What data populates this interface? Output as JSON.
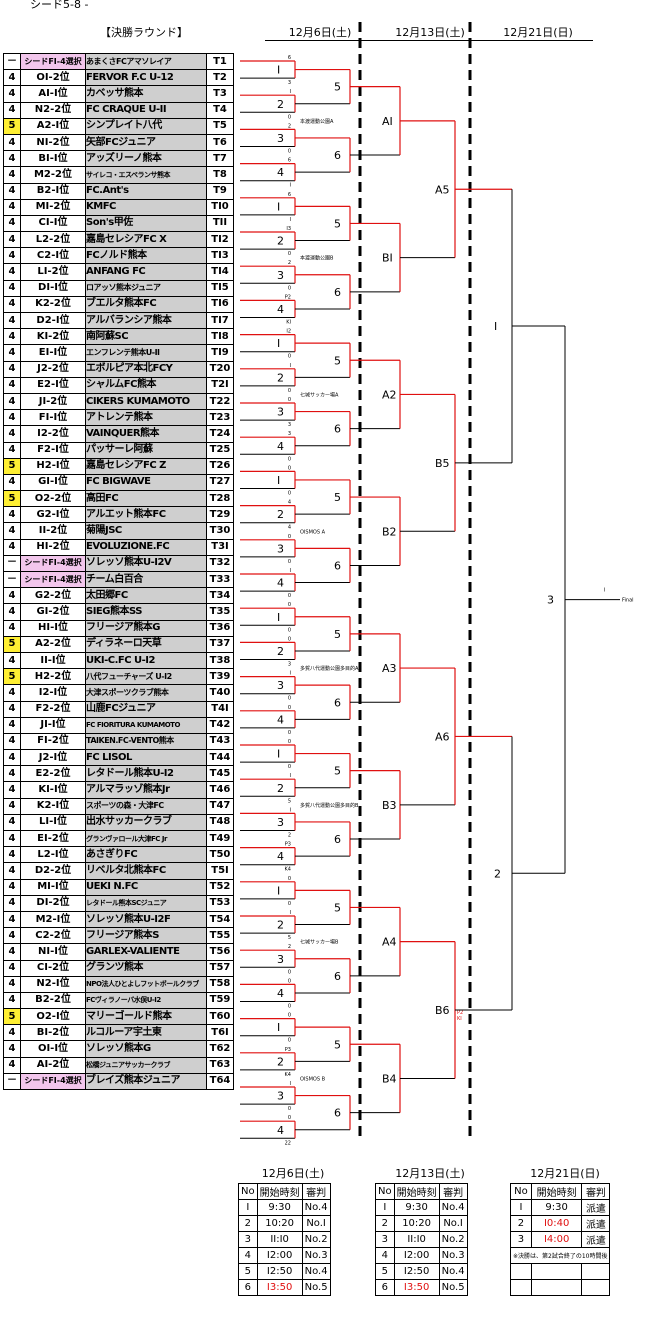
{
  "header": {
    "top": "シード5-8 -",
    "round_title": "【決勝ラウンド】"
  },
  "dates": [
    "12月6日(土)",
    "12月13日(土)",
    "12月21日(日)"
  ],
  "teams": [
    {
      "pts": "－",
      "rank": "シードFI-4選択",
      "name": "あまくさFCアマソレイア",
      "code": "T1",
      "seed": true,
      "sm": true
    },
    {
      "pts": "4",
      "rank": "OI-2位",
      "name": "FERVOR F.C U-12",
      "code": "T2"
    },
    {
      "pts": "4",
      "rank": "AI-I位",
      "name": "カベッサ熊本",
      "code": "T3"
    },
    {
      "pts": "4",
      "rank": "N2-2位",
      "name": "FC CRAQUE U-II",
      "code": "T4"
    },
    {
      "pts": "5",
      "rank": "A2-I位",
      "name": "シンプレイト八代",
      "code": "T5",
      "hl": true
    },
    {
      "pts": "4",
      "rank": "NI-2位",
      "name": "矢部FCジュニア",
      "code": "T6"
    },
    {
      "pts": "4",
      "rank": "BI-I位",
      "name": "アッズリーノ熊本",
      "code": "T7"
    },
    {
      "pts": "4",
      "rank": "M2-2位",
      "name": "サイレコ・エスペランサ熊本",
      "code": "T8",
      "xs": true
    },
    {
      "pts": "4",
      "rank": "B2-I位",
      "name": "FC.Ant's",
      "code": "T9"
    },
    {
      "pts": "4",
      "rank": "MI-2位",
      "name": "KMFC",
      "code": "TI0"
    },
    {
      "pts": "4",
      "rank": "CI-I位",
      "name": "Son's甲佐",
      "code": "TII"
    },
    {
      "pts": "4",
      "rank": "L2-2位",
      "name": "嘉島セレシアFC X",
      "code": "TI2"
    },
    {
      "pts": "4",
      "rank": "C2-I位",
      "name": "FCノルド熊本",
      "code": "TI3"
    },
    {
      "pts": "4",
      "rank": "LI-2位",
      "name": "ANFANG FC",
      "code": "TI4"
    },
    {
      "pts": "4",
      "rank": "DI-I位",
      "name": "ロアッソ熊本ジュニア",
      "code": "TI5",
      "sm": true
    },
    {
      "pts": "4",
      "rank": "K2-2位",
      "name": "ブエルタ熊本FC",
      "code": "TI6"
    },
    {
      "pts": "4",
      "rank": "D2-I位",
      "name": "アルバランシア熊本",
      "code": "TI7"
    },
    {
      "pts": "4",
      "rank": "KI-2位",
      "name": "南阿蘇SC",
      "code": "TI8"
    },
    {
      "pts": "4",
      "rank": "EI-I位",
      "name": "エンフレンテ熊本U-II",
      "code": "TI9",
      "sm": true
    },
    {
      "pts": "4",
      "rank": "J2-2位",
      "name": "エボルピア本北FCY",
      "code": "T20"
    },
    {
      "pts": "4",
      "rank": "E2-I位",
      "name": "シャルムFC熊本",
      "code": "T2I"
    },
    {
      "pts": "4",
      "rank": "JI-2位",
      "name": "CIKERS KUMAMOTO",
      "code": "T22"
    },
    {
      "pts": "4",
      "rank": "FI-I位",
      "name": "アトレンテ熊本",
      "code": "T23"
    },
    {
      "pts": "4",
      "rank": "I2-2位",
      "name": "VAINQUER熊本",
      "code": "T24"
    },
    {
      "pts": "4",
      "rank": "F2-I位",
      "name": "パッサーレ阿蘇",
      "code": "T25"
    },
    {
      "pts": "5",
      "rank": "H2-I位",
      "name": "嘉島セレシアFC Z",
      "code": "T26",
      "hl": true
    },
    {
      "pts": "4",
      "rank": "GI-I位",
      "name": "FC BIGWAVE",
      "code": "T27"
    },
    {
      "pts": "5",
      "rank": "O2-2位",
      "name": "高田FC",
      "code": "T28",
      "hl": true
    },
    {
      "pts": "4",
      "rank": "G2-I位",
      "name": "アルエット熊本FC",
      "code": "T29"
    },
    {
      "pts": "4",
      "rank": "II-2位",
      "name": "菊陽JSC",
      "code": "T30"
    },
    {
      "pts": "4",
      "rank": "HI-2位",
      "name": "EVOLUZIONE.FC",
      "code": "T3I"
    },
    {
      "pts": "－",
      "rank": "シードFI-4選択",
      "name": "ソレッソ熊本U-I2V",
      "code": "T32",
      "seed": true
    },
    {
      "pts": "－",
      "rank": "シードFI-4選択",
      "name": "チーム白百合",
      "code": "T33",
      "seed": true
    },
    {
      "pts": "4",
      "rank": "G2-2位",
      "name": "太田郷FC",
      "code": "T34"
    },
    {
      "pts": "4",
      "rank": "GI-2位",
      "name": "SIEG熊本SS",
      "code": "T35"
    },
    {
      "pts": "4",
      "rank": "HI-I位",
      "name": "フリージア熊本G",
      "code": "T36"
    },
    {
      "pts": "5",
      "rank": "A2-2位",
      "name": "ディラネーロ天草",
      "code": "T37",
      "hl": true
    },
    {
      "pts": "4",
      "rank": "II-I位",
      "name": "UKI-C.FC U-I2",
      "code": "T38"
    },
    {
      "pts": "5",
      "rank": "H2-2位",
      "name": "八代フューチャーズ U-I2",
      "code": "T39",
      "hl": true,
      "sm": true
    },
    {
      "pts": "4",
      "rank": "I2-I位",
      "name": "大津スポーツクラブ熊本",
      "code": "T40",
      "sm": true
    },
    {
      "pts": "4",
      "rank": "F2-2位",
      "name": "山鹿FCジュニア",
      "code": "T4I"
    },
    {
      "pts": "4",
      "rank": "JI-I位",
      "name": "FC FIORITURA KUMAMOTO",
      "code": "T42",
      "xs": true
    },
    {
      "pts": "4",
      "rank": "FI-2位",
      "name": "TAIKEN.FC-VENTO熊本",
      "code": "T43",
      "sm": true
    },
    {
      "pts": "4",
      "rank": "J2-I位",
      "name": "FC LISOL",
      "code": "T44"
    },
    {
      "pts": "4",
      "rank": "E2-2位",
      "name": "レタドール熊本U-I2",
      "code": "T45"
    },
    {
      "pts": "4",
      "rank": "KI-I位",
      "name": "アルマラッゾ熊本Jr",
      "code": "T46"
    },
    {
      "pts": "4",
      "rank": "K2-I位",
      "name": "スポーツの森・大津FC",
      "code": "T47",
      "sm": true
    },
    {
      "pts": "4",
      "rank": "LI-I位",
      "name": "出水サッカークラブ",
      "code": "T48"
    },
    {
      "pts": "4",
      "rank": "EI-2位",
      "name": "グランヴァロール大津FC Jr",
      "code": "T49",
      "xs": true
    },
    {
      "pts": "4",
      "rank": "L2-I位",
      "name": "あさぎりFC",
      "code": "T50"
    },
    {
      "pts": "4",
      "rank": "D2-2位",
      "name": "リベルタ北熊本FC",
      "code": "T5I"
    },
    {
      "pts": "4",
      "rank": "MI-I位",
      "name": "UEKI N.FC",
      "code": "T52"
    },
    {
      "pts": "4",
      "rank": "DI-2位",
      "name": "レタドール熊本SCジュニア",
      "code": "T53",
      "xs": true
    },
    {
      "pts": "4",
      "rank": "M2-I位",
      "name": "ソレッソ熊本U-I2F",
      "code": "T54"
    },
    {
      "pts": "4",
      "rank": "C2-2位",
      "name": "フリージア熊本S",
      "code": "T55"
    },
    {
      "pts": "4",
      "rank": "NI-I位",
      "name": "GARLEX-VALIENTE",
      "code": "T56"
    },
    {
      "pts": "4",
      "rank": "CI-2位",
      "name": "グランツ熊本",
      "code": "T57"
    },
    {
      "pts": "4",
      "rank": "N2-I位",
      "name": "NPO法人ひとよしフットボールクラブ",
      "code": "T58",
      "xs": true
    },
    {
      "pts": "4",
      "rank": "B2-2位",
      "name": "FCヴィラノーバ水俣U-I2",
      "code": "T59",
      "xs": true
    },
    {
      "pts": "5",
      "rank": "O2-I位",
      "name": "マリーゴールド熊本",
      "code": "T60",
      "hl": true
    },
    {
      "pts": "4",
      "rank": "BI-2位",
      "name": "ルコルーア宇土東",
      "code": "T6I"
    },
    {
      "pts": "4",
      "rank": "OI-I位",
      "name": "ソレッソ熊本G",
      "code": "T62"
    },
    {
      "pts": "4",
      "rank": "AI-2位",
      "name": "松橋ジュニアサッカークラブ",
      "code": "T63",
      "xs": true
    },
    {
      "pts": "－",
      "rank": "シードFI-4選択",
      "name": "ブレイズ熊本ジュニア",
      "code": "T64",
      "seed": true
    }
  ],
  "match_numbers": [
    "5",
    "6",
    "5",
    "6",
    "5",
    "6",
    "5",
    "6",
    "5",
    "6",
    "5",
    "6",
    "5",
    "6",
    "5",
    "6"
  ],
  "match_scores": [
    [
      "6",
      "3"
    ],
    [
      "I",
      "0"
    ],
    [
      "2",
      "0"
    ],
    [
      "6",
      "I"
    ],
    [
      "6",
      "I"
    ],
    [
      "I3",
      "0"
    ],
    [
      "2",
      "0"
    ],
    [
      "P2",
      "KI"
    ],
    [
      "I2",
      "0"
    ],
    [
      "I",
      "0"
    ],
    [
      "0",
      "3"
    ],
    [
      "3",
      "0"
    ],
    [
      "0",
      "0"
    ],
    [
      "4",
      "4"
    ],
    [
      "0",
      "0"
    ],
    [
      "I",
      "0"
    ],
    [
      "0",
      "0"
    ],
    [
      "0",
      "3"
    ],
    [
      "I",
      "0"
    ],
    [
      "0",
      "0"
    ],
    [
      "0",
      "0"
    ],
    [
      "I",
      "5"
    ],
    [
      "I",
      "2"
    ],
    [
      "P3",
      "K4"
    ],
    [
      "0",
      "0"
    ],
    [
      "I",
      "5"
    ],
    [
      "2",
      "0"
    ],
    [
      "0",
      "0"
    ],
    [
      "0",
      "0"
    ],
    [
      "P3",
      "K4"
    ],
    [
      "I",
      "0"
    ],
    [
      "0",
      "22"
    ],
    [
      "0",
      "3"
    ],
    [
      "5",
      "0"
    ],
    [
      "0",
      "0"
    ],
    [
      "2",
      "0"
    ],
    [
      "2",
      "0"
    ],
    [
      "0",
      "0"
    ],
    [
      "3",
      "0"
    ],
    [
      "I",
      "0"
    ],
    [
      "0",
      "0"
    ],
    [
      "I",
      "0"
    ],
    [
      "0",
      "0"
    ],
    [
      "0",
      "0"
    ],
    [
      "0",
      "0"
    ],
    [
      "2",
      "4"
    ],
    [
      "0",
      "0"
    ],
    [
      "I",
      "2"
    ],
    [
      "P4",
      "K5"
    ],
    [
      "I",
      "0"
    ],
    [
      "0",
      "5"
    ],
    [
      "0",
      "4"
    ],
    [
      "I",
      "0"
    ],
    [
      "II",
      "0"
    ],
    [
      "0",
      "0"
    ],
    [
      "I",
      "0"
    ],
    [
      "0",
      "0"
    ],
    [
      "PI",
      "K3"
    ],
    [
      "0",
      "0"
    ],
    [
      "I",
      "2"
    ],
    [
      "0",
      "0"
    ],
    [
      "4",
      "0"
    ],
    [
      "0",
      "0"
    ],
    [
      "2",
      "6"
    ]
  ],
  "venues": [
    "本渡運動公園A",
    "本渡運動公園B",
    "七城サッカー場A",
    "OISMOS A",
    "多賀八代運動公園多目的A",
    "多賀八代運動公園多目的B",
    "七城サッカー場B",
    "OISMOS B"
  ],
  "round2": {
    "labels": [
      "AI",
      "BI",
      "A2",
      "B2",
      "A3",
      "B3",
      "A4",
      "B4"
    ],
    "scores": [
      [
        "P2",
        "KI",
        "0"
      ],
      [
        "I",
        "5"
      ],
      [
        "0",
        "0"
      ],
      [
        "0",
        "I2"
      ],
      [
        "2",
        "I"
      ],
      [
        "3",
        "2"
      ],
      [
        "I (O)",
        ""
      ],
      [
        "P2",
        "K3",
        "(O)"
      ]
    ]
  },
  "round3": {
    "labels": [
      "A5",
      "B5",
      "A6",
      "B6"
    ],
    "pk": [
      "P2",
      "KI"
    ]
  },
  "round4": {
    "labels": [
      "I",
      "2"
    ]
  },
  "final": {
    "label": "3",
    "caption": "I",
    "word": "Final"
  },
  "schedules": [
    {
      "title": "12月6日(土)",
      "headers": [
        "No",
        "開始時刻",
        "審判"
      ],
      "rows": [
        [
          "I",
          "9:30",
          "No.4"
        ],
        [
          "2",
          "10:20",
          "No.I"
        ],
        [
          "3",
          "II:I0",
          "No.2"
        ],
        [
          "4",
          "I2:00",
          "No.3"
        ],
        [
          "5",
          "I2:50",
          "No.4"
        ],
        [
          "6",
          "I3:50",
          "No.5"
        ]
      ],
      "red": [
        5
      ]
    },
    {
      "title": "12月13日(土)",
      "headers": [
        "No",
        "開始時刻",
        "審判"
      ],
      "rows": [
        [
          "I",
          "9:30",
          "No.4"
        ],
        [
          "2",
          "10:20",
          "No.I"
        ],
        [
          "3",
          "II:I0",
          "No.2"
        ],
        [
          "4",
          "I2:00",
          "No.3"
        ],
        [
          "5",
          "I2:50",
          "No.4"
        ],
        [
          "6",
          "I3:50",
          "No.5"
        ]
      ],
      "red": [
        5
      ]
    },
    {
      "title": "12月21日(日)",
      "headers": [
        "No",
        "開始時刻",
        "審判"
      ],
      "rows": [
        [
          "I",
          "9:30",
          "派遣"
        ],
        [
          "2",
          "I0:40",
          "派遣"
        ],
        [
          "3",
          "I4:00",
          "派遣"
        ]
      ],
      "red": [
        1,
        2
      ],
      "note": "※決勝は、第2試合終了の10時間後"
    }
  ]
}
